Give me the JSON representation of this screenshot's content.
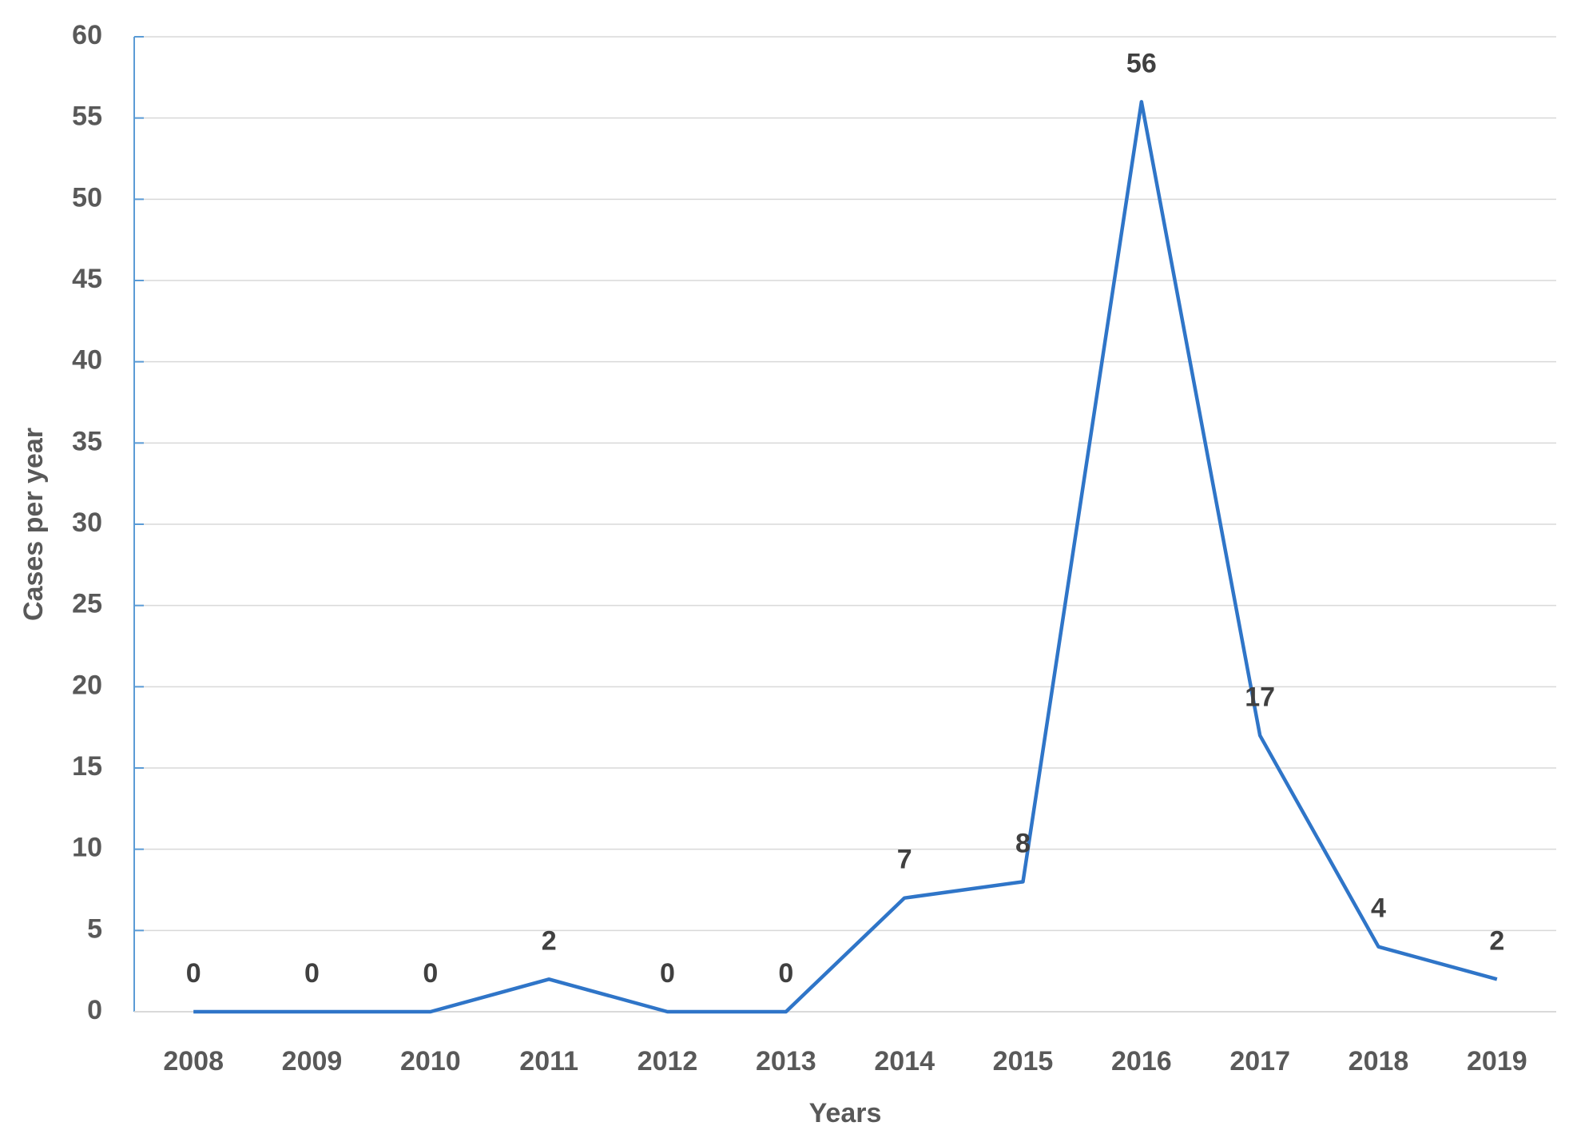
{
  "chart_data": {
    "type": "line",
    "x_label": "Years",
    "y_label": "Cases per year",
    "categories": [
      "2008",
      "2009",
      "2010",
      "2011",
      "2012",
      "2013",
      "2014",
      "2015",
      "2016",
      "2017",
      "2018",
      "2019"
    ],
    "series": [
      {
        "name": "Cases per year",
        "color": "#2f75c8",
        "values": [
          0,
          0,
          0,
          2,
          0,
          0,
          7,
          8,
          56,
          17,
          4,
          2
        ]
      }
    ],
    "ylim": [
      0,
      60
    ],
    "yticks": [
      0,
      5,
      10,
      15,
      20,
      25,
      30,
      35,
      40,
      45,
      50,
      55,
      60
    ],
    "grid": true,
    "axis_color": "#5b9bd5"
  }
}
